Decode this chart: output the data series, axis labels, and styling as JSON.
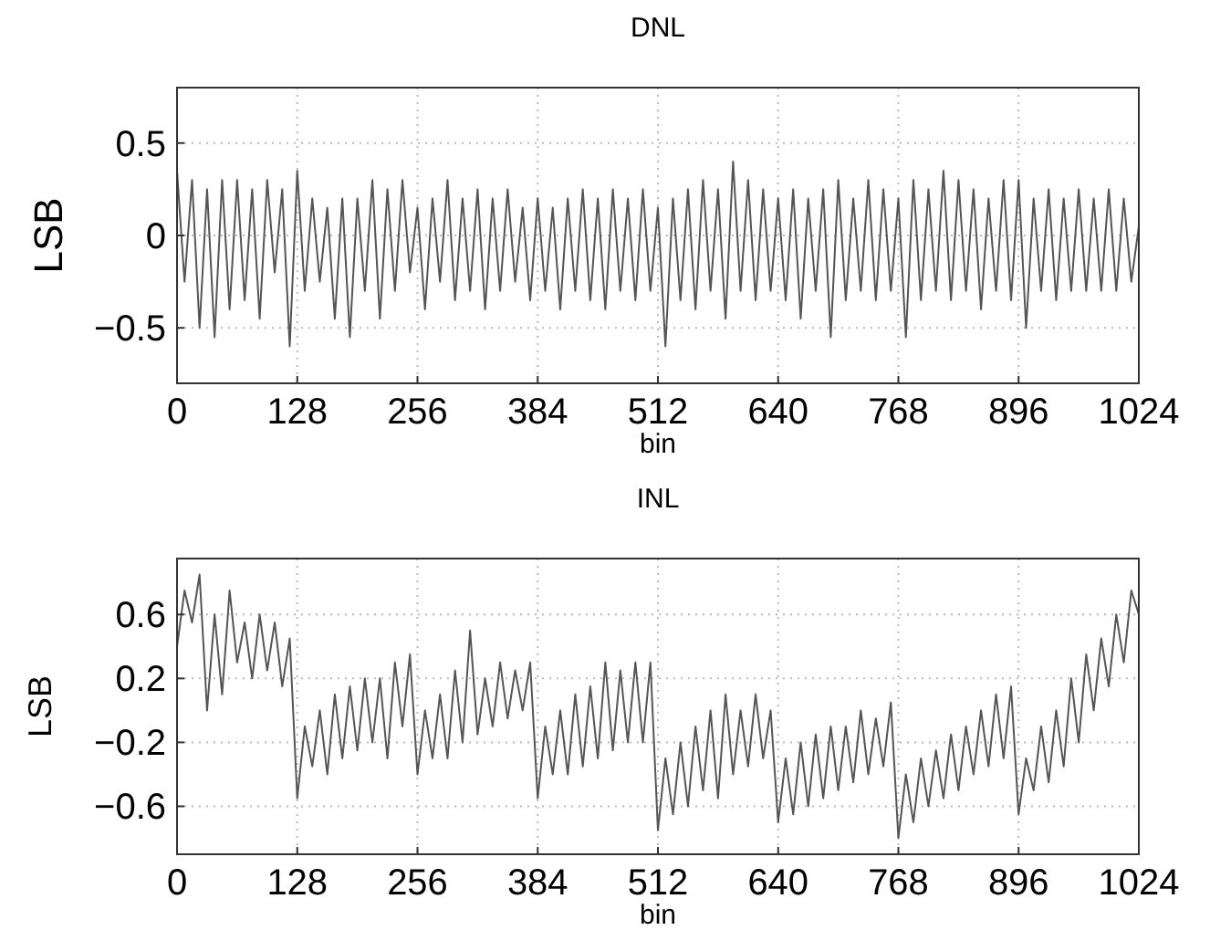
{
  "chart_data": [
    {
      "type": "line",
      "title": "DNL",
      "xlabel": "bin",
      "ylabel": "LSB",
      "xlim": [
        0,
        1024
      ],
      "xticks": [
        0,
        128,
        256,
        384,
        512,
        640,
        768,
        896,
        1024
      ],
      "ylim": [
        -0.8,
        0.8
      ],
      "yticks": [
        {
          "value": -0.5,
          "label": "−0.5"
        },
        0,
        0.5
      ],
      "grid": true,
      "marker": "none",
      "line_style": "solid",
      "x": [
        0,
        8,
        16,
        24,
        32,
        40,
        48,
        56,
        64,
        72,
        80,
        88,
        96,
        104,
        112,
        120,
        128,
        136,
        144,
        152,
        160,
        168,
        176,
        184,
        192,
        200,
        208,
        216,
        224,
        232,
        240,
        248,
        256,
        264,
        272,
        280,
        288,
        296,
        304,
        312,
        320,
        328,
        336,
        344,
        352,
        360,
        368,
        376,
        384,
        392,
        400,
        408,
        416,
        424,
        432,
        440,
        448,
        456,
        464,
        472,
        480,
        488,
        496,
        504,
        512,
        520,
        528,
        536,
        544,
        552,
        560,
        568,
        576,
        584,
        592,
        600,
        608,
        616,
        624,
        632,
        640,
        648,
        656,
        664,
        672,
        680,
        688,
        696,
        704,
        712,
        720,
        728,
        736,
        744,
        752,
        760,
        768,
        776,
        784,
        792,
        800,
        808,
        816,
        824,
        832,
        840,
        848,
        856,
        864,
        872,
        880,
        888,
        896,
        904,
        912,
        920,
        928,
        936,
        944,
        952,
        960,
        968,
        976,
        984,
        992,
        1000,
        1008,
        1016,
        1024
      ],
      "series": [
        {
          "color": "#555555",
          "values": [
            0.35,
            -0.25,
            0.3,
            -0.5,
            0.25,
            -0.55,
            0.3,
            -0.4,
            0.3,
            -0.35,
            0.25,
            -0.45,
            0.3,
            -0.2,
            0.25,
            -0.6,
            0.35,
            -0.3,
            0.2,
            -0.25,
            0.15,
            -0.45,
            0.2,
            -0.55,
            0.2,
            -0.3,
            0.3,
            -0.45,
            0.25,
            -0.3,
            0.3,
            -0.2,
            0.15,
            -0.4,
            0.2,
            -0.25,
            0.3,
            -0.35,
            0.2,
            -0.3,
            0.25,
            -0.4,
            0.2,
            -0.3,
            0.25,
            -0.25,
            0.15,
            -0.35,
            0.2,
            -0.3,
            0.15,
            -0.4,
            0.2,
            -0.3,
            0.25,
            -0.35,
            0.2,
            -0.4,
            0.25,
            -0.3,
            0.2,
            -0.35,
            0.25,
            -0.3,
            0.15,
            -0.6,
            0.2,
            -0.35,
            0.25,
            -0.4,
            0.3,
            -0.3,
            0.25,
            -0.45,
            0.4,
            -0.3,
            0.3,
            -0.35,
            0.25,
            -0.3,
            0.2,
            -0.35,
            0.25,
            -0.45,
            0.2,
            -0.3,
            0.25,
            -0.55,
            0.3,
            -0.35,
            0.2,
            -0.3,
            0.3,
            -0.35,
            0.25,
            -0.3,
            0.2,
            -0.55,
            0.3,
            -0.35,
            0.25,
            -0.3,
            0.35,
            -0.35,
            0.3,
            -0.3,
            0.25,
            -0.4,
            0.2,
            -0.3,
            0.3,
            -0.35,
            0.3,
            -0.5,
            0.2,
            -0.3,
            0.25,
            -0.35,
            0.2,
            -0.3,
            0.25,
            -0.3,
            0.2,
            -0.3,
            0.25,
            -0.3,
            0.2,
            -0.25,
            0.05
          ]
        }
      ]
    },
    {
      "type": "line",
      "title": "INL",
      "xlabel": "bin",
      "ylabel": "LSB",
      "xlim": [
        0,
        1024
      ],
      "xticks": [
        0,
        128,
        256,
        384,
        512,
        640,
        768,
        896,
        1024
      ],
      "ylim": [
        -0.9,
        0.95
      ],
      "yticks": [
        {
          "value": -0.6,
          "label": "−0.6"
        },
        {
          "value": -0.2,
          "label": "−0.2"
        },
        0.2,
        0.6
      ],
      "grid": true,
      "marker": "none",
      "line_style": "solid",
      "x": [
        0,
        8,
        16,
        24,
        32,
        40,
        48,
        56,
        64,
        72,
        80,
        88,
        96,
        104,
        112,
        120,
        128,
        136,
        144,
        152,
        160,
        168,
        176,
        184,
        192,
        200,
        208,
        216,
        224,
        232,
        240,
        248,
        256,
        264,
        272,
        280,
        288,
        296,
        304,
        312,
        320,
        328,
        336,
        344,
        352,
        360,
        368,
        376,
        384,
        392,
        400,
        408,
        416,
        424,
        432,
        440,
        448,
        456,
        464,
        472,
        480,
        488,
        496,
        504,
        512,
        520,
        528,
        536,
        544,
        552,
        560,
        568,
        576,
        584,
        592,
        600,
        608,
        616,
        624,
        632,
        640,
        648,
        656,
        664,
        672,
        680,
        688,
        696,
        704,
        712,
        720,
        728,
        736,
        744,
        752,
        760,
        768,
        776,
        784,
        792,
        800,
        808,
        816,
        824,
        832,
        840,
        848,
        856,
        864,
        872,
        880,
        888,
        896,
        904,
        912,
        920,
        928,
        936,
        944,
        952,
        960,
        968,
        976,
        984,
        992,
        1000,
        1008,
        1016,
        1024
      ],
      "series": [
        {
          "color": "#555555",
          "values": [
            0.4,
            0.75,
            0.55,
            0.85,
            0.0,
            0.6,
            0.1,
            0.75,
            0.3,
            0.55,
            0.2,
            0.6,
            0.25,
            0.55,
            0.15,
            0.45,
            -0.55,
            -0.1,
            -0.35,
            0.0,
            -0.4,
            0.1,
            -0.3,
            0.15,
            -0.25,
            0.2,
            -0.2,
            0.2,
            -0.3,
            0.3,
            -0.1,
            0.35,
            -0.4,
            0.0,
            -0.3,
            0.1,
            -0.3,
            0.25,
            -0.2,
            0.5,
            -0.15,
            0.2,
            -0.1,
            0.3,
            -0.05,
            0.25,
            0.0,
            0.3,
            -0.55,
            -0.1,
            -0.4,
            0.0,
            -0.4,
            0.1,
            -0.35,
            0.15,
            -0.3,
            0.3,
            -0.25,
            0.25,
            -0.2,
            0.3,
            -0.2,
            0.3,
            -0.75,
            -0.3,
            -0.65,
            -0.2,
            -0.6,
            -0.1,
            -0.5,
            0.0,
            -0.55,
            0.1,
            -0.4,
            0.0,
            -0.35,
            0.1,
            -0.3,
            0.0,
            -0.7,
            -0.3,
            -0.65,
            -0.2,
            -0.6,
            -0.15,
            -0.55,
            -0.1,
            -0.5,
            -0.1,
            -0.45,
            0.0,
            -0.4,
            -0.05,
            -0.35,
            0.05,
            -0.8,
            -0.4,
            -0.7,
            -0.3,
            -0.6,
            -0.25,
            -0.55,
            -0.15,
            -0.5,
            -0.1,
            -0.4,
            0.0,
            -0.35,
            0.1,
            -0.3,
            0.15,
            -0.65,
            -0.3,
            -0.5,
            -0.1,
            -0.45,
            0.0,
            -0.35,
            0.2,
            -0.2,
            0.35,
            0.0,
            0.45,
            0.15,
            0.6,
            0.3,
            0.75,
            0.6
          ]
        }
      ]
    }
  ]
}
